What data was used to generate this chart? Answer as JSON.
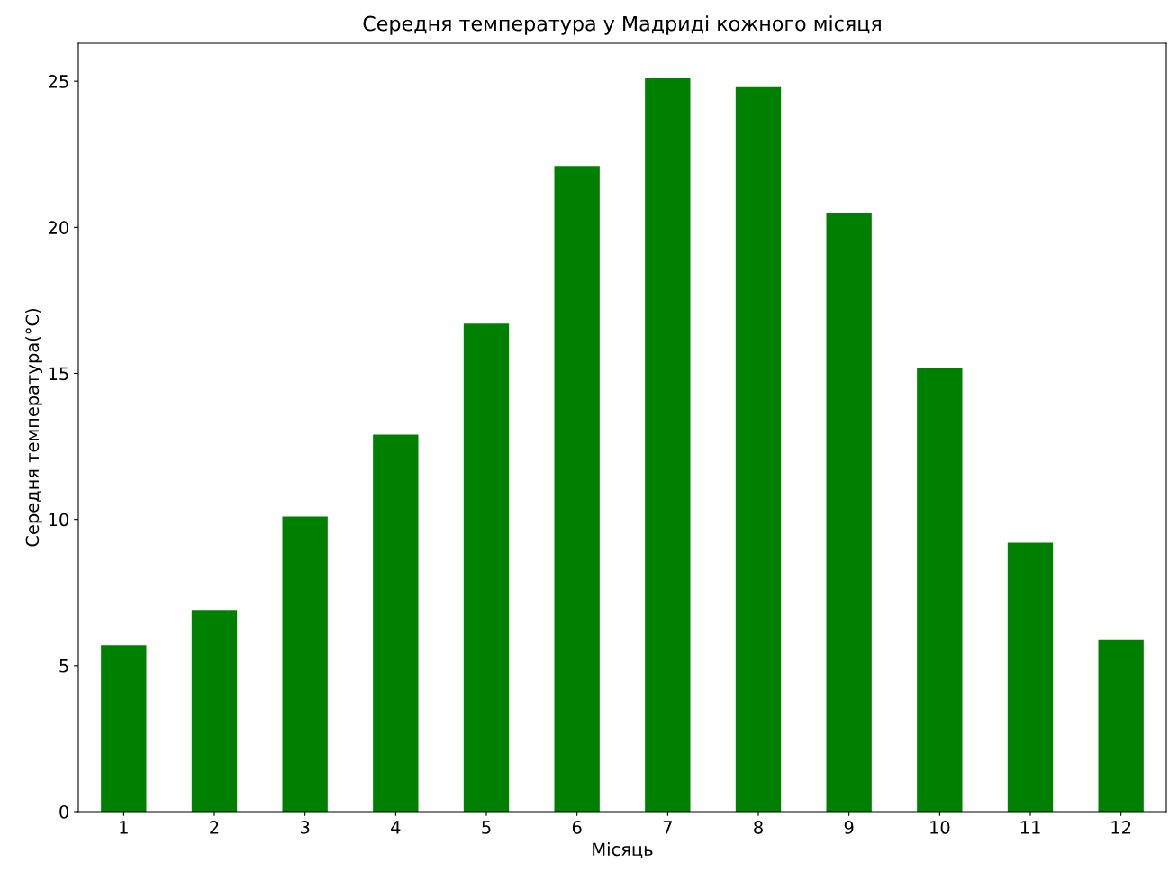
{
  "chart_data": {
    "type": "bar",
    "title": "Середня температура у Мадриді кожного місяця",
    "xlabel": "Місяць",
    "ylabel": "Середня температура(°C)",
    "categories": [
      "1",
      "2",
      "3",
      "4",
      "5",
      "6",
      "7",
      "8",
      "9",
      "10",
      "11",
      "12"
    ],
    "values": [
      5.7,
      6.9,
      10.1,
      12.9,
      16.7,
      22.1,
      25.1,
      24.8,
      20.5,
      15.2,
      9.2,
      5.9
    ],
    "color": "#008000",
    "ylim": [
      0,
      26.3
    ],
    "yticks": [
      0,
      5,
      10,
      15,
      20,
      25
    ],
    "grid": false,
    "legend": false
  }
}
